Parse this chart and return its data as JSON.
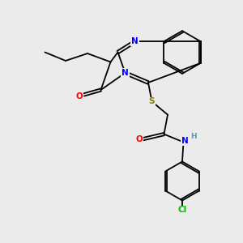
{
  "bg_color": "#ebebeb",
  "atom_colors": {
    "N": "#0000ff",
    "O": "#ff0000",
    "S": "#808000",
    "Cl": "#00bb00",
    "C": "#000000",
    "H": "#5599aa"
  },
  "bond_color": "#000000",
  "bond_lw": 1.3,
  "font_size_atom": 7.5
}
